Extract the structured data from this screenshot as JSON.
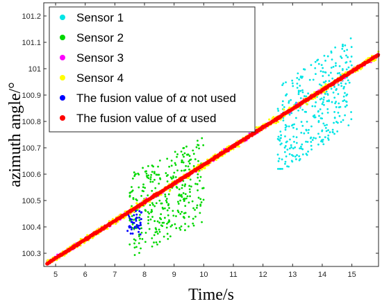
{
  "chart_data": {
    "type": "scatter",
    "xlabel": "Time/s",
    "ylabel": "azimuth angle/°",
    "xlim": [
      4.6,
      15.9
    ],
    "ylim": [
      100.25,
      101.25
    ],
    "x_ticks": [
      5,
      6,
      7,
      8,
      9,
      10,
      11,
      12,
      13,
      14,
      15
    ],
    "y_ticks": [
      100.3,
      100.4,
      100.5,
      100.6,
      100.7,
      100.8,
      100.9,
      101,
      101.1,
      101.2
    ],
    "x_tick_labels": [
      "5",
      "6",
      "7",
      "8",
      "9",
      "10",
      "11",
      "12",
      "13",
      "14",
      "15"
    ],
    "y_tick_labels": [
      "100.3",
      "100.4",
      "100.5",
      "100.6",
      "100.7",
      "100.8",
      "100.9",
      "101",
      "101.1",
      "101.2"
    ],
    "grid": false,
    "legend_position": "top-left",
    "series": [
      {
        "name": "Sensor 1",
        "color": "#00e5e5",
        "x_range": [
          12.5,
          15.0
        ],
        "y_band": [
          100.62,
          101.17
        ],
        "center_trend": [
          [
            12.5,
            100.76
          ],
          [
            15.0,
            100.96
          ]
        ],
        "spread": 0.17,
        "approx_points": 330
      },
      {
        "name": "Sensor 2",
        "color": "#00d800",
        "x_range": [
          7.5,
          10.0
        ],
        "y_band": [
          100.27,
          100.76
        ],
        "center_trend": [
          [
            7.5,
            100.44
          ],
          [
            10.0,
            100.58
          ]
        ],
        "spread": 0.16,
        "approx_points": 330
      },
      {
        "name": "Sensor 3",
        "color": "#ff00ff",
        "x_range": [
          4.7,
          15.9
        ],
        "trend": [
          [
            4.7,
            100.26
          ],
          [
            15.85,
            101.05
          ]
        ],
        "noise": 0.008
      },
      {
        "name": "Sensor 4",
        "color": "#ffff00",
        "x_range": [
          4.7,
          15.9
        ],
        "trend": [
          [
            4.7,
            100.26
          ],
          [
            15.85,
            101.05
          ]
        ],
        "noise": 0.012
      },
      {
        "name": "The fusion value of α not used",
        "name_prefix": "The fusion value of ",
        "name_symbol": "α",
        "name_suffix": " not used",
        "color": "#0000ff",
        "x_range": [
          7.4,
          7.9
        ],
        "y_band": [
          100.37,
          100.47
        ]
      },
      {
        "name": "The fusion value of α used",
        "name_prefix": "The fusion value of ",
        "name_symbol": "α",
        "name_suffix": " used",
        "color": "#ff0000",
        "x_range": [
          4.7,
          15.9
        ],
        "trend": [
          [
            4.7,
            100.26
          ],
          [
            15.85,
            101.05
          ]
        ],
        "noise": 0.004
      }
    ]
  }
}
